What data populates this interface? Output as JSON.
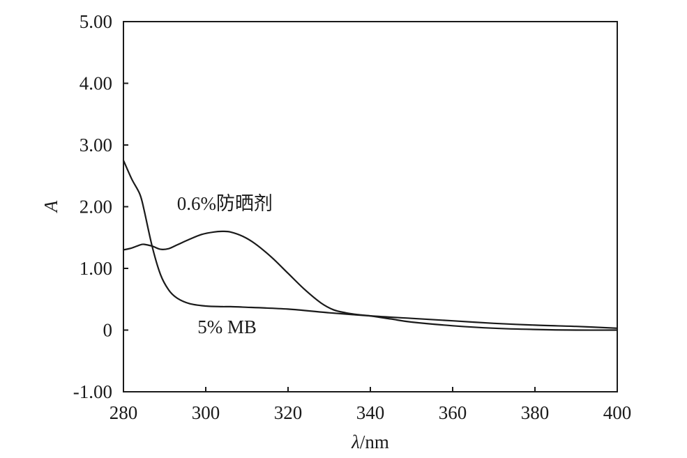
{
  "chart_data": {
    "type": "line",
    "xlabel_symbol": "λ",
    "xlabel_unit": "/nm",
    "ylabel": "A",
    "xlim": [
      280,
      400
    ],
    "ylim": [
      -1.0,
      5.0
    ],
    "grid": false,
    "legend": "none",
    "x_ticks": [
      280,
      300,
      320,
      340,
      360,
      380,
      400
    ],
    "x_tick_labels": [
      "280",
      "300",
      "320",
      "340",
      "360",
      "380",
      "400"
    ],
    "y_ticks": [
      -1.0,
      0,
      1.0,
      2.0,
      3.0,
      4.0,
      5.0
    ],
    "y_tick_labels": [
      "-1.00",
      "0",
      "1.00",
      "2.00",
      "3.00",
      "4.00",
      "5.00"
    ],
    "series": [
      {
        "annotation": "0.6%防晒剂",
        "x": [
          280,
          282,
          284,
          285,
          287,
          289,
          291,
          293,
          296,
          299,
          302,
          304,
          306,
          309,
          312,
          316,
          320,
          324,
          328,
          331,
          334,
          337,
          340,
          345,
          350,
          360,
          370,
          380,
          390,
          400
        ],
        "y": [
          1.3,
          1.33,
          1.38,
          1.39,
          1.36,
          1.31,
          1.32,
          1.38,
          1.47,
          1.55,
          1.59,
          1.6,
          1.59,
          1.52,
          1.4,
          1.18,
          0.92,
          0.66,
          0.44,
          0.33,
          0.28,
          0.25,
          0.23,
          0.18,
          0.13,
          0.07,
          0.03,
          0.01,
          0.0,
          0.0
        ]
      },
      {
        "annotation": "5% MB",
        "x": [
          280,
          282,
          284,
          285,
          287,
          289,
          291,
          293,
          296,
          300,
          304,
          306,
          310,
          320,
          330,
          340,
          350,
          360,
          370,
          380,
          390,
          400
        ],
        "y": [
          2.75,
          2.45,
          2.2,
          1.95,
          1.35,
          0.9,
          0.65,
          0.52,
          0.43,
          0.39,
          0.38,
          0.38,
          0.37,
          0.34,
          0.28,
          0.23,
          0.19,
          0.15,
          0.11,
          0.08,
          0.06,
          0.03
        ]
      }
    ],
    "annotations": [
      {
        "text": "0.6%防晒剂",
        "x": 293,
        "y": 1.95
      },
      {
        "text": "5% MB",
        "x": 298,
        "y": -0.05
      }
    ]
  }
}
